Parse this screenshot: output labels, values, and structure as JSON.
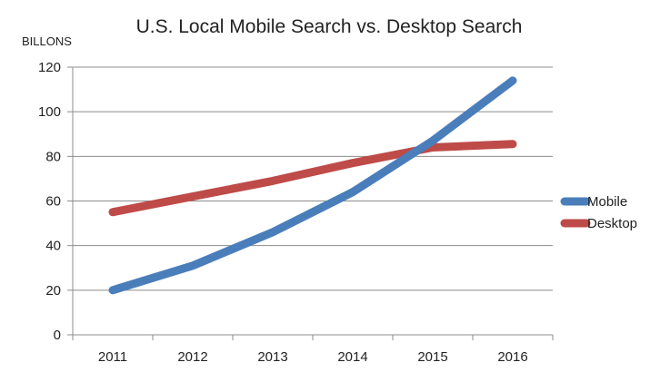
{
  "chart_data": {
    "type": "line",
    "title": "U.S. Local Mobile Search vs. Desktop Search",
    "ylabel": "BILLONS",
    "xlabel": "",
    "categories": [
      "2011",
      "2012",
      "2013",
      "2014",
      "2015",
      "2016"
    ],
    "ylim": [
      0,
      120
    ],
    "yticks": [
      "0",
      "20",
      "40",
      "60",
      "80",
      "100",
      "120"
    ],
    "grid": true,
    "legend_position": "right",
    "series": [
      {
        "name": "Mobile",
        "color": "#4A7EBB",
        "values": [
          20,
          31,
          46,
          64,
          87,
          114
        ]
      },
      {
        "name": "Desktop",
        "color": "#BE4B48",
        "values": [
          55,
          62,
          69,
          77,
          84,
          85.5
        ]
      }
    ]
  }
}
